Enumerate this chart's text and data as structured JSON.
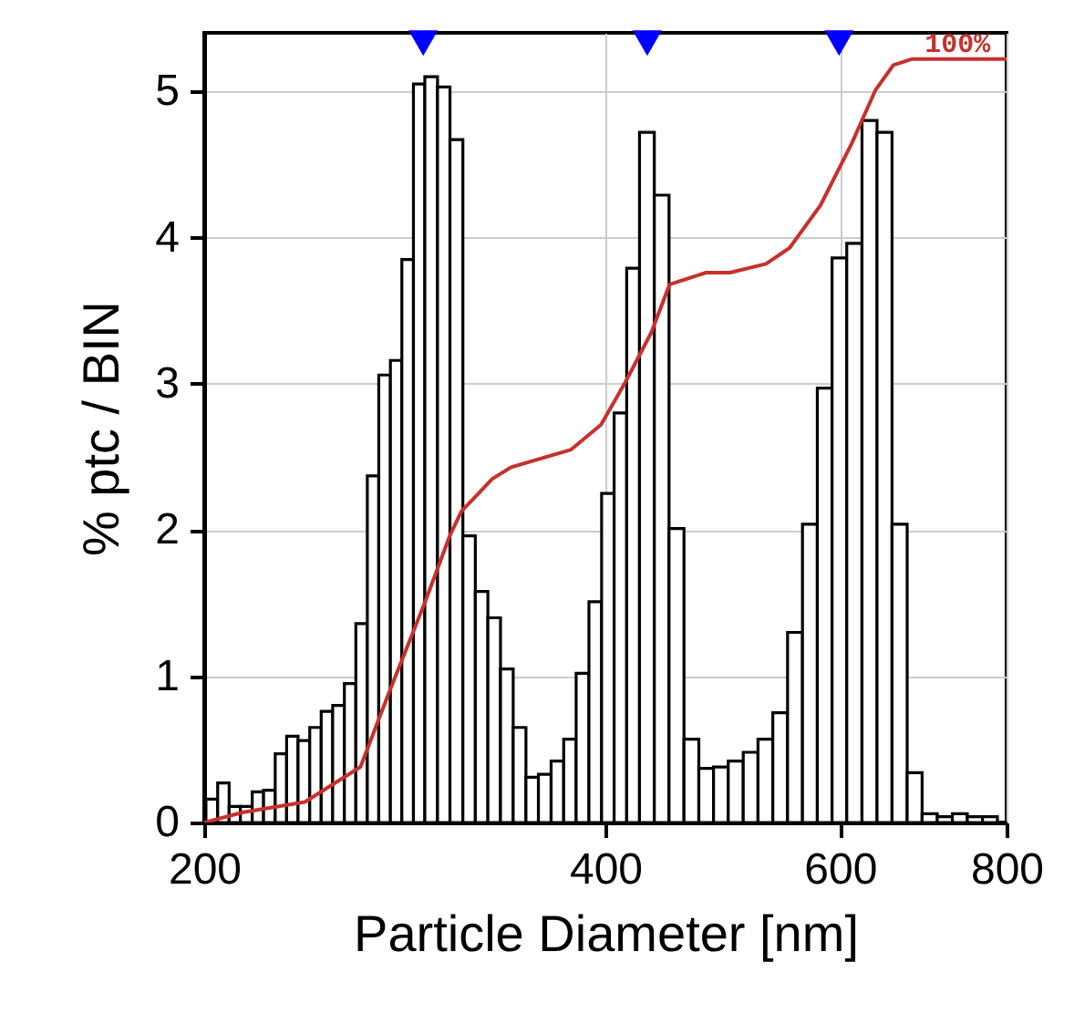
{
  "chart_data": {
    "type": "histogram",
    "xlabel": "Particle Diameter [nm]",
    "ylabel": "% ptc / BIN",
    "log": "x",
    "grid": true,
    "color": "#ffffff",
    "bins": [
      200.6,
      204.7,
      208.8,
      212.9,
      217.3,
      221.6,
      226.1,
      230.6,
      235.2,
      240.0,
      244.8,
      249.7,
      254.8,
      259.9,
      265.1,
      270.4,
      275.9,
      281.4,
      287.1,
      292.8,
      299.3,
      305.8,
      312.7,
      319.5,
      326.5,
      333.7,
      341.1,
      348.7,
      356.3,
      364.2,
      372.2,
      380.3,
      388.8,
      397.4,
      406.1,
      415.0,
      424.3,
      435.3,
      446.5,
      458.2,
      470.1,
      482.2,
      494.6,
      507.6,
      520.7,
      534.2,
      548.0,
      562.3,
      576.9,
      591.8,
      607.0,
      623.2,
      639.6,
      656.4,
      673.8,
      691.4,
      709.8,
      728.5,
      747.6,
      767.4,
      787.5
    ],
    "values": [
      0.16,
      0.27,
      0.11,
      0.11,
      0.21,
      0.22,
      0.47,
      0.59,
      0.56,
      0.65,
      0.76,
      0.8,
      0.95,
      1.36,
      2.37,
      3.06,
      3.16,
      3.85,
      5.05,
      5.1,
      5.03,
      4.67,
      1.96,
      1.58,
      1.4,
      1.05,
      0.65,
      0.31,
      0.33,
      0.42,
      0.57,
      1.02,
      1.51,
      2.25,
      2.8,
      3.79,
      4.72,
      4.29,
      2.01,
      0.57,
      0.37,
      0.38,
      0.42,
      0.48,
      0.57,
      0.75,
      1.3,
      2.04,
      2.97,
      3.86,
      3.96,
      4.8,
      4.72,
      2.04,
      0.34,
      0.06,
      0.04,
      0.06,
      0.04,
      0.04
    ],
    "series": [
      {
        "type": "line",
        "color": "#c8302c",
        "x": [
          200,
          214,
          238,
          262,
          275,
          293,
          306,
          312,
          319,
          329,
          340,
          377,
          397,
          414,
          433,
          447,
          476,
          496,
          528,
          550,
          580,
          612,
          638,
          658,
          679,
          800
        ],
        "values": [
          0,
          0.07,
          0.14,
          0.38,
          0.88,
          1.51,
          1.97,
          2.13,
          2.22,
          2.35,
          2.43,
          2.55,
          2.72,
          3.01,
          3.35,
          3.68,
          3.76,
          3.76,
          3.82,
          3.93,
          4.22,
          4.64,
          5.01,
          5.18,
          5.22,
          5.22
        ]
      },
      {
        "type": "scatter",
        "color": "#0000ff",
        "marker": "triangle",
        "x": [
          292,
          430,
          599
        ],
        "values": [
          5.33,
          5.33,
          5.33
        ]
      }
    ],
    "annotations": [
      {
        "text": "100%",
        "x": 735,
        "y": 5.22
      }
    ],
    "xlim": [
      200,
      800
    ],
    "xticks": [
      200,
      400,
      600,
      800
    ],
    "ylim": [
      0,
      5.4
    ],
    "yticks": [
      0,
      1,
      2,
      3,
      4,
      5
    ]
  }
}
